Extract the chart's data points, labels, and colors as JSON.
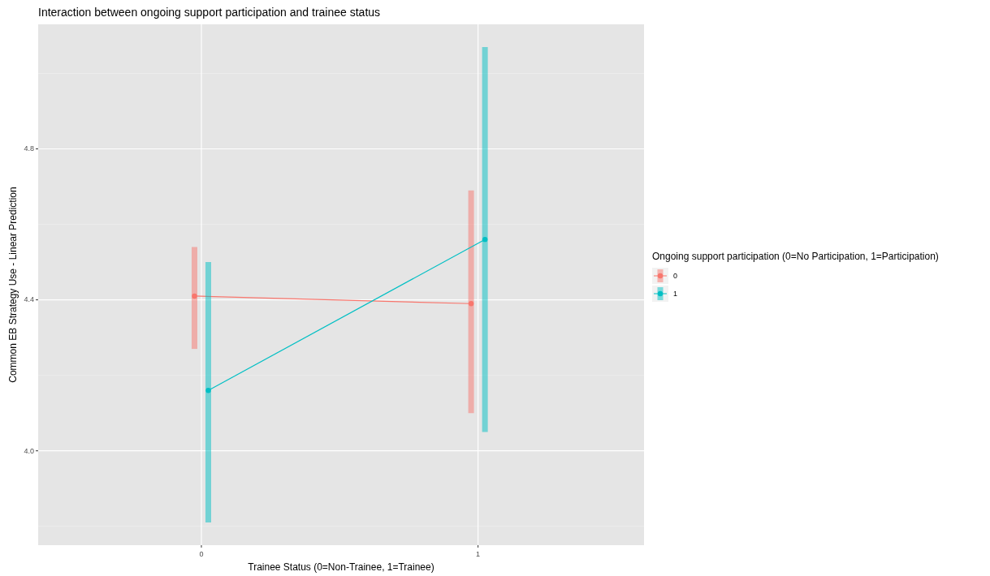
{
  "chart_data": {
    "type": "line",
    "title": "Interaction between ongoing support participation and trainee status",
    "xlabel": "Trainee Status (0=Non-Trainee, 1=Trainee)",
    "ylabel": "Common EB Strategy Use - Linear Prediction",
    "legend_title": "Ongoing support participation (0=No Participation, 1=Participation)",
    "xlim": [
      -0.59,
      1.6
    ],
    "xticks": [
      0,
      1
    ],
    "ylim": [
      3.75,
      5.13
    ],
    "yticks": [
      {
        "value": 4,
        "label": "4.0"
      },
      {
        "value": 4.4,
        "label": "4.4"
      },
      {
        "value": 4.8,
        "label": "4.8"
      }
    ],
    "grid": true,
    "legend": "right",
    "marker": "circle",
    "series": [
      {
        "name": "0",
        "color": "#f8766d",
        "x": [
          -0.025,
          0.975
        ],
        "values": [
          4.41,
          4.39
        ],
        "errors": [
          [
            4.27,
            4.54
          ],
          [
            4.1,
            4.69
          ]
        ]
      },
      {
        "name": "1",
        "color": "#00bfc4",
        "x": [
          0.025,
          1.025
        ],
        "values": [
          4.16,
          4.56
        ],
        "errors": [
          [
            3.81,
            4.5
          ],
          [
            4.05,
            5.07
          ]
        ]
      }
    ]
  }
}
